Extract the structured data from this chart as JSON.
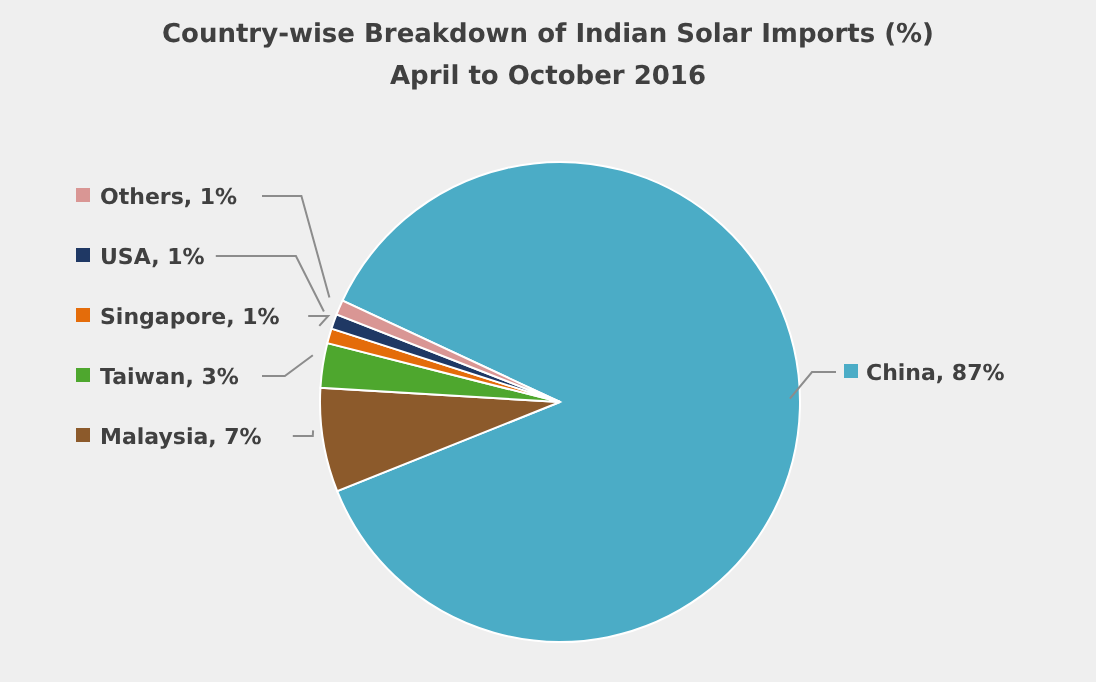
{
  "chart_data": {
    "type": "pie",
    "title": "Country-wise Breakdown of Indian Solar Imports (%)",
    "subtitle": "April to October 2016",
    "categories": [
      "China",
      "Malaysia",
      "Taiwan",
      "Singapore",
      "USA",
      "Others"
    ],
    "values": [
      87,
      7,
      3,
      1,
      1,
      1
    ],
    "value_labels": [
      "87%",
      "7%",
      "3%",
      "1%",
      "1%",
      "1%"
    ],
    "colors": [
      "#4bacc6",
      "#8c5a2b",
      "#4ea72e",
      "#e46c0a",
      "#1f3864",
      "#d99694"
    ],
    "legend": "left"
  }
}
